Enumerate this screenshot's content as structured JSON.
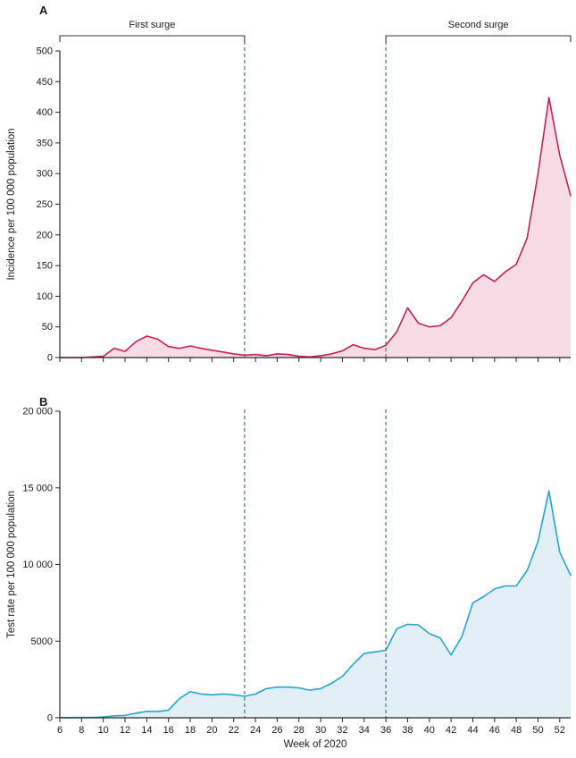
{
  "figure": {
    "xlabel": "Week of 2020",
    "surge_annotations": [
      {
        "label": "First surge",
        "x_start": 6,
        "x_end": 23
      },
      {
        "label": "Second surge",
        "x_start": 36,
        "x_end": 53
      }
    ],
    "divider_color": "#4f706e",
    "axis_color": "#262626"
  },
  "chart_data": [
    {
      "type": "area",
      "panel": "A",
      "series_name": "incidence",
      "title": "",
      "xlabel": "",
      "ylabel": "Incidence per 100 000 population",
      "xlim": [
        6,
        53
      ],
      "ylim": [
        0,
        500
      ],
      "xticks": [
        6,
        8,
        10,
        12,
        14,
        16,
        18,
        20,
        22,
        24,
        26,
        28,
        30,
        32,
        34,
        36,
        38,
        40,
        42,
        44,
        46,
        48,
        50,
        52
      ],
      "yticks": [
        0,
        50,
        100,
        150,
        200,
        250,
        300,
        350,
        400,
        450,
        500
      ],
      "x": [
        6,
        7,
        8,
        9,
        10,
        11,
        12,
        13,
        14,
        15,
        16,
        17,
        18,
        19,
        20,
        21,
        22,
        23,
        24,
        25,
        26,
        27,
        28,
        29,
        30,
        31,
        32,
        33,
        34,
        35,
        36,
        37,
        38,
        39,
        40,
        41,
        42,
        43,
        44,
        45,
        46,
        47,
        48,
        49,
        50,
        51,
        52,
        53
      ],
      "values": [
        0,
        0,
        0,
        1,
        2,
        15,
        10,
        26,
        35,
        30,
        18,
        15,
        19,
        15,
        12,
        9,
        6,
        4,
        5,
        3,
        6,
        5,
        2,
        1,
        3,
        6,
        11,
        21,
        15,
        13,
        20,
        42,
        81,
        56,
        50,
        52,
        65,
        92,
        122,
        135,
        124,
        140,
        152,
        195,
        300,
        424,
        330,
        264
      ],
      "line_color": "#c81e5b",
      "fill_color": "#f7dce5",
      "dashed_lines_x": [
        23,
        36
      ],
      "grid": false,
      "legend": "none"
    },
    {
      "type": "area",
      "panel": "B",
      "series_name": "test-rate",
      "title": "",
      "xlabel": "Week of 2020",
      "ylabel": "Test rate per 100 000 population",
      "xlim": [
        6,
        53
      ],
      "ylim": [
        0,
        20000
      ],
      "xticks": [
        6,
        8,
        10,
        12,
        14,
        16,
        18,
        20,
        22,
        24,
        26,
        28,
        30,
        32,
        34,
        36,
        38,
        40,
        42,
        44,
        46,
        48,
        50,
        52
      ],
      "yticks": [
        0,
        5000,
        10000,
        15000,
        20000
      ],
      "ytick_labels": [
        "0",
        "5000",
        "10 000",
        "15 000",
        "20 000"
      ],
      "x": [
        6,
        7,
        8,
        9,
        10,
        11,
        12,
        13,
        14,
        15,
        16,
        17,
        18,
        19,
        20,
        21,
        22,
        23,
        24,
        25,
        26,
        27,
        28,
        29,
        30,
        31,
        32,
        33,
        34,
        35,
        36,
        37,
        38,
        39,
        40,
        41,
        42,
        43,
        44,
        45,
        46,
        47,
        48,
        49,
        50,
        51,
        52,
        53
      ],
      "values": [
        10,
        10,
        15,
        20,
        60,
        130,
        150,
        300,
        420,
        400,
        500,
        1250,
        1700,
        1550,
        1500,
        1550,
        1500,
        1400,
        1550,
        1900,
        2000,
        2000,
        1950,
        1800,
        1900,
        2250,
        2700,
        3500,
        4200,
        4300,
        4400,
        5800,
        6100,
        6050,
        5500,
        5200,
        4100,
        5300,
        7500,
        7900,
        8400,
        8600,
        8600,
        9600,
        11500,
        14800,
        10800,
        9300
      ],
      "line_color": "#27a5cd",
      "fill_color": "#e2eff7",
      "dashed_lines_x": [
        23,
        36
      ],
      "grid": false,
      "legend": "none"
    }
  ]
}
